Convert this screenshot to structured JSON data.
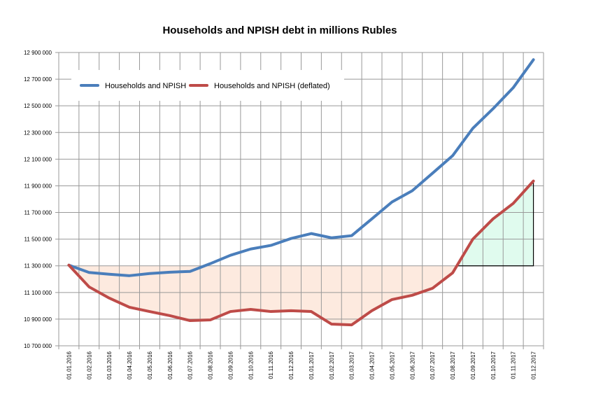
{
  "chart_data": {
    "type": "line",
    "title": "Households and NPISH debt in millions Rubles",
    "xlabel": "",
    "ylabel": "",
    "ylim": [
      10700000,
      12900000
    ],
    "ytick_step": 200000,
    "yticks": [
      "10 700 000",
      "10 900 000",
      "11 100 000",
      "11 300 000",
      "11 500 000",
      "11 700 000",
      "11 900 000",
      "12 100 000",
      "12 300 000",
      "12 500 000",
      "12 700 000",
      "12 900 000"
    ],
    "grid": true,
    "legend_position": "top-left",
    "categories": [
      "01.01.2016",
      "01.02.2016",
      "01.03.2016",
      "01.04.2016",
      "01.05.2016",
      "01.06.2016",
      "01.07.2016",
      "01.08.2016",
      "01.09.2016",
      "01.10.2016",
      "01.11.2016",
      "01.12.2016",
      "01.01.2017",
      "01.02.2017",
      "01.03.2017",
      "01.04.2017",
      "01.05.2017",
      "01.06.2017",
      "01.07.2017",
      "01.08.2017",
      "01.09.2017",
      "01.10.2017",
      "01.11.2017",
      "01.12.2017"
    ],
    "series": [
      {
        "name": "Households and NPISH",
        "color": "#4a7ebb",
        "values": [
          11305000,
          11250000,
          11237000,
          11226000,
          11242000,
          11252000,
          11258000,
          11316000,
          11379000,
          11426000,
          11453000,
          11505000,
          11542000,
          11510000,
          11526000,
          11652000,
          11779000,
          11863000,
          11994000,
          12126000,
          12331000,
          12478000,
          12636000,
          12846000
        ]
      },
      {
        "name": "Households and NPISH (deflated)",
        "color": "#be4b48",
        "values": [
          11305000,
          11142000,
          11058000,
          10989000,
          10957000,
          10926000,
          10889000,
          10894000,
          10957000,
          10973000,
          10957000,
          10963000,
          10957000,
          10863000,
          10857000,
          10963000,
          11047000,
          11079000,
          11131000,
          11247000,
          11500000,
          11652000,
          11768000,
          11936000
        ]
      }
    ],
    "reference_level": 11300000,
    "shading": {
      "below_color": "#fdeadf",
      "above_color": "#e0fbee"
    }
  }
}
